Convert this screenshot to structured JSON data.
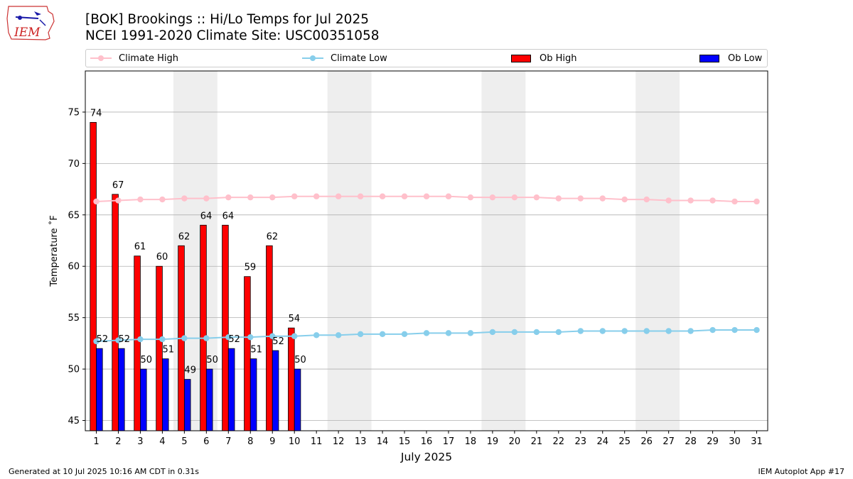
{
  "header": {
    "title_line1": "[BOK] Brookings :: Hi/Lo Temps for Jul 2025",
    "title_line2": "NCEI 1991-2020 Climate Site: USC00351058"
  },
  "logo": {
    "text": "IEM"
  },
  "legend": {
    "climate_high": "Climate High",
    "climate_low": "Climate Low",
    "ob_high": "Ob High",
    "ob_low": "Ob Low"
  },
  "colors": {
    "climate_high": "#ffc0cb",
    "climate_low": "#87ceeb",
    "ob_high": "#ff0000",
    "ob_low": "#0000ff",
    "weekend_shade": "#eeeeee",
    "grid": "#b0b0b0"
  },
  "footer": {
    "left": "Generated at 10 Jul 2025 10:16 AM CDT in 0.31s",
    "right": "IEM Autoplot App #17"
  },
  "chart_data": {
    "type": "bar",
    "title": "[BOK] Brookings :: Hi/Lo Temps for Jul 2025",
    "subtitle": "NCEI 1991-2020 Climate Site: USC00351058",
    "xlabel": "July 2025",
    "ylabel": "Temperature ˚F",
    "x": [
      1,
      2,
      3,
      4,
      5,
      6,
      7,
      8,
      9,
      10,
      11,
      12,
      13,
      14,
      15,
      16,
      17,
      18,
      19,
      20,
      21,
      22,
      23,
      24,
      25,
      26,
      27,
      28,
      29,
      30,
      31
    ],
    "xlim": [
      0.5,
      31.5
    ],
    "ylim": [
      44,
      79
    ],
    "yticks": [
      45,
      50,
      55,
      60,
      65,
      70,
      75
    ],
    "grid": "y",
    "legend_position": "top",
    "weekend_shading": [
      [
        5,
        6
      ],
      [
        12,
        13
      ],
      [
        19,
        20
      ],
      [
        26,
        27
      ]
    ],
    "series": [
      {
        "name": "Ob High",
        "type": "bar",
        "color": "#ff0000",
        "x": [
          1,
          2,
          3,
          4,
          5,
          6,
          7,
          8,
          9,
          10
        ],
        "values": [
          74,
          67,
          61,
          60,
          62,
          64,
          64,
          59,
          62,
          54
        ],
        "labels": [
          "74",
          "67",
          "61",
          "60",
          "62",
          "64",
          "64",
          "59",
          "62",
          "54"
        ]
      },
      {
        "name": "Ob Low",
        "type": "bar",
        "color": "#0000ff",
        "x": [
          1,
          2,
          3,
          4,
          5,
          6,
          7,
          8,
          9,
          10
        ],
        "values": [
          52,
          52,
          50,
          51,
          49,
          50,
          52,
          51,
          51.8,
          50
        ],
        "labels": [
          "52",
          "52",
          "50",
          "51",
          "49",
          "50",
          "52",
          "51",
          "52",
          "50"
        ]
      },
      {
        "name": "Climate High",
        "type": "line",
        "color": "#ffc0cb",
        "values": [
          66.3,
          66.4,
          66.5,
          66.5,
          66.6,
          66.6,
          66.7,
          66.7,
          66.7,
          66.8,
          66.8,
          66.8,
          66.8,
          66.8,
          66.8,
          66.8,
          66.8,
          66.7,
          66.7,
          66.7,
          66.7,
          66.6,
          66.6,
          66.6,
          66.5,
          66.5,
          66.4,
          66.4,
          66.4,
          66.3,
          66.3
        ]
      },
      {
        "name": "Climate Low",
        "type": "line",
        "color": "#87ceeb",
        "values": [
          52.7,
          52.8,
          52.9,
          52.9,
          53.0,
          53.0,
          53.1,
          53.1,
          53.2,
          53.2,
          53.3,
          53.3,
          53.4,
          53.4,
          53.4,
          53.5,
          53.5,
          53.5,
          53.6,
          53.6,
          53.6,
          53.6,
          53.7,
          53.7,
          53.7,
          53.7,
          53.7,
          53.7,
          53.8,
          53.8,
          53.8
        ]
      }
    ]
  }
}
